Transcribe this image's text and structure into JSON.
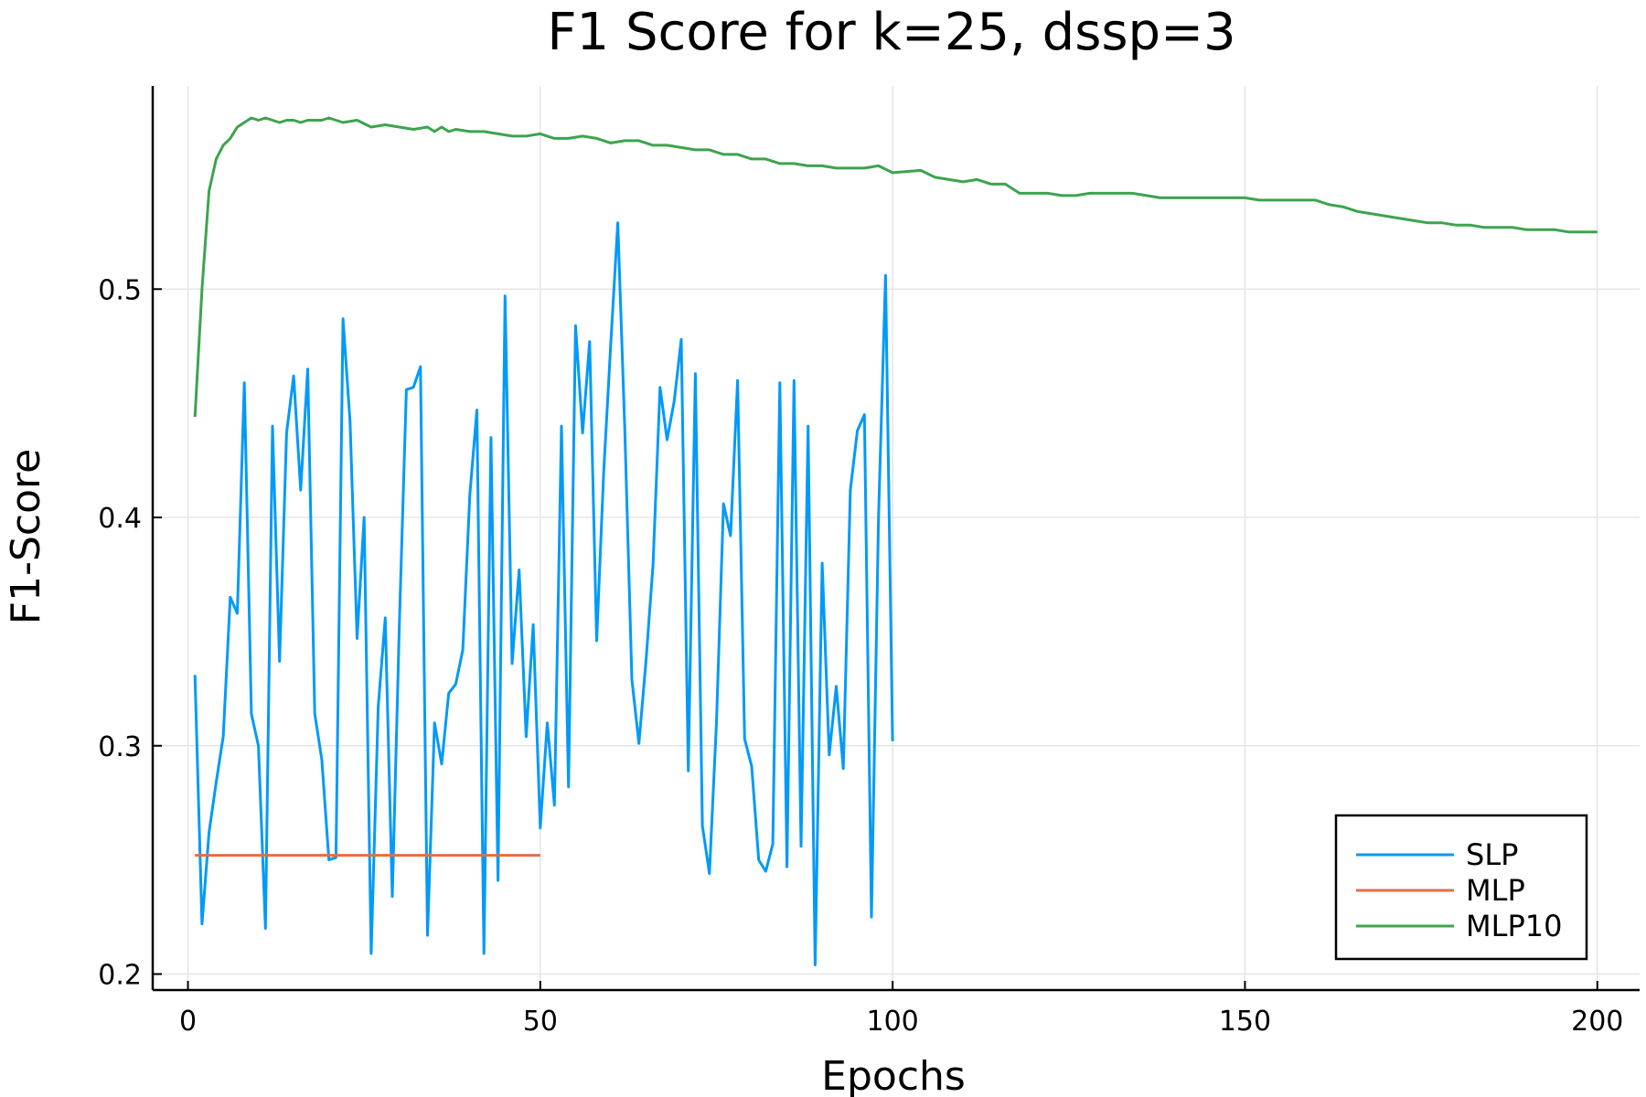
{
  "chart_data": {
    "type": "line",
    "title": "F1 Score for k=25, dssp=3",
    "xlabel": "Epochs",
    "ylabel": "F1-Score",
    "xlim": [
      -5,
      206
    ],
    "ylim": [
      0.193,
      0.589
    ],
    "xticks": [
      0,
      50,
      100,
      150,
      200
    ],
    "xtick_labels": [
      "0",
      "50",
      "100",
      "150",
      "200"
    ],
    "yticks": [
      0.2,
      0.3,
      0.4,
      0.5
    ],
    "ytick_labels": [
      "0.2",
      "0.3",
      "0.4",
      "0.5"
    ],
    "grid": true,
    "legend_position": "bottom-right",
    "series": [
      {
        "name": "SLP",
        "color": "#009af9",
        "x": [
          1,
          2,
          3,
          4,
          5,
          6,
          7,
          8,
          9,
          10,
          11,
          12,
          13,
          14,
          15,
          16,
          17,
          18,
          19,
          20,
          21,
          22,
          23,
          24,
          25,
          26,
          27,
          28,
          29,
          30,
          31,
          32,
          33,
          34,
          35,
          36,
          37,
          38,
          39,
          40,
          41,
          42,
          43,
          44,
          45,
          46,
          47,
          48,
          49,
          50,
          51,
          52,
          53,
          54,
          55,
          56,
          57,
          58,
          59,
          60,
          61,
          62,
          63,
          64,
          65,
          66,
          67,
          68,
          69,
          70,
          71,
          72,
          73,
          74,
          75,
          76,
          77,
          78,
          79,
          80,
          81,
          82,
          83,
          84,
          85,
          86,
          87,
          88,
          89,
          90,
          91,
          92,
          93,
          94,
          95,
          96,
          97,
          98,
          99,
          100
        ],
        "y": [
          0.331,
          0.222,
          0.262,
          0.284,
          0.304,
          0.365,
          0.358,
          0.459,
          0.314,
          0.3,
          0.22,
          0.44,
          0.337,
          0.437,
          0.462,
          0.412,
          0.465,
          0.314,
          0.294,
          0.25,
          0.251,
          0.487,
          0.442,
          0.347,
          0.4,
          0.209,
          0.317,
          0.356,
          0.234,
          0.353,
          0.456,
          0.457,
          0.466,
          0.217,
          0.31,
          0.292,
          0.323,
          0.327,
          0.342,
          0.41,
          0.447,
          0.209,
          0.435,
          0.241,
          0.497,
          0.336,
          0.377,
          0.304,
          0.353,
          0.264,
          0.31,
          0.274,
          0.44,
          0.282,
          0.484,
          0.437,
          0.477,
          0.346,
          0.42,
          0.476,
          0.529,
          0.438,
          0.329,
          0.301,
          0.337,
          0.379,
          0.457,
          0.434,
          0.451,
          0.478,
          0.289,
          0.463,
          0.265,
          0.244,
          0.31,
          0.406,
          0.392,
          0.46,
          0.303,
          0.291,
          0.25,
          0.245,
          0.257,
          0.459,
          0.247,
          0.46,
          0.256,
          0.44,
          0.204,
          0.38,
          0.296,
          0.326,
          0.29,
          0.412,
          0.438,
          0.445,
          0.225,
          0.4,
          0.506,
          0.302
        ]
      },
      {
        "name": "MLP",
        "color": "#e26f46",
        "x": [
          1,
          50
        ],
        "y": [
          0.252,
          0.252
        ]
      },
      {
        "name": "MLP10",
        "color": "#3da44d",
        "x": [
          1,
          2,
          3,
          4,
          5,
          6,
          7,
          8,
          9,
          10,
          11,
          12,
          13,
          14,
          15,
          16,
          17,
          18,
          19,
          20,
          22,
          24,
          26,
          28,
          30,
          32,
          34,
          35,
          36,
          37,
          38,
          40,
          42,
          44,
          46,
          48,
          50,
          52,
          54,
          56,
          58,
          60,
          62,
          64,
          66,
          68,
          70,
          72,
          74,
          76,
          78,
          80,
          82,
          84,
          86,
          88,
          90,
          92,
          94,
          96,
          98,
          100,
          104,
          106,
          108,
          110,
          112,
          114,
          116,
          118,
          120,
          122,
          124,
          126,
          128,
          130,
          132,
          134,
          136,
          138,
          140,
          142,
          144,
          146,
          148,
          150,
          152,
          154,
          156,
          158,
          160,
          162,
          164,
          166,
          168,
          170,
          172,
          174,
          176,
          178,
          180,
          182,
          184,
          186,
          188,
          190,
          192,
          194,
          196,
          198,
          200
        ],
        "y": [
          0.444,
          0.5,
          0.543,
          0.557,
          0.563,
          0.566,
          0.571,
          0.573,
          0.575,
          0.574,
          0.575,
          0.574,
          0.573,
          0.574,
          0.574,
          0.573,
          0.574,
          0.574,
          0.574,
          0.575,
          0.573,
          0.574,
          0.571,
          0.572,
          0.571,
          0.57,
          0.571,
          0.569,
          0.571,
          0.569,
          0.57,
          0.569,
          0.569,
          0.568,
          0.567,
          0.567,
          0.568,
          0.566,
          0.566,
          0.567,
          0.566,
          0.564,
          0.565,
          0.565,
          0.563,
          0.563,
          0.562,
          0.561,
          0.561,
          0.559,
          0.559,
          0.557,
          0.557,
          0.555,
          0.555,
          0.554,
          0.554,
          0.553,
          0.553,
          0.553,
          0.554,
          0.551,
          0.552,
          0.549,
          0.548,
          0.547,
          0.548,
          0.546,
          0.546,
          0.542,
          0.542,
          0.542,
          0.541,
          0.541,
          0.542,
          0.542,
          0.542,
          0.542,
          0.541,
          0.54,
          0.54,
          0.54,
          0.54,
          0.54,
          0.54,
          0.54,
          0.539,
          0.539,
          0.539,
          0.539,
          0.539,
          0.537,
          0.536,
          0.534,
          0.533,
          0.532,
          0.531,
          0.53,
          0.529,
          0.529,
          0.528,
          0.528,
          0.527,
          0.527,
          0.527,
          0.526,
          0.526,
          0.526,
          0.525,
          0.525,
          0.525
        ]
      }
    ]
  }
}
